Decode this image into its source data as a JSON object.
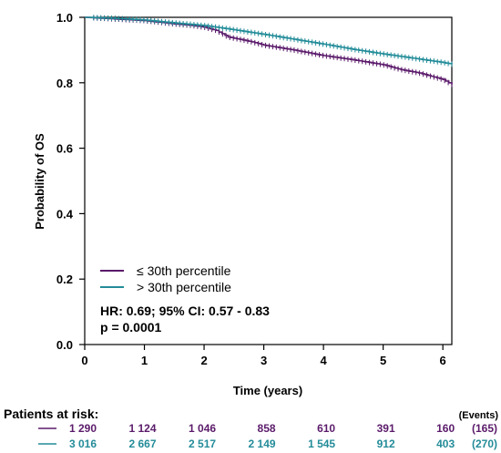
{
  "chart_data": {
    "type": "line",
    "subtype": "kaplan-meier",
    "xlabel": "Time (years)",
    "ylabel": "Probability of OS",
    "xlim": [
      0,
      6.15
    ],
    "ylim": [
      0,
      1.0
    ],
    "x_ticks": [
      "0",
      "1",
      "2",
      "3",
      "4",
      "5",
      "6"
    ],
    "y_ticks": [
      "0.0",
      "0.2",
      "0.4",
      "0.6",
      "0.8",
      "1.0"
    ],
    "grid": false,
    "legend_position": "bottom-left",
    "series": [
      {
        "name": "≤ 30th percentile",
        "color": "#5b1b6b",
        "x": [
          0,
          0.5,
          1.0,
          1.5,
          1.8,
          2.0,
          2.1,
          2.2,
          2.4,
          2.8,
          3.0,
          3.5,
          4.0,
          4.5,
          5.0,
          5.3,
          5.6,
          6.0,
          6.15
        ],
        "y": [
          1.0,
          0.995,
          0.99,
          0.98,
          0.975,
          0.97,
          0.965,
          0.96,
          0.94,
          0.925,
          0.915,
          0.9,
          0.883,
          0.87,
          0.855,
          0.84,
          0.83,
          0.81,
          0.795
        ]
      },
      {
        "name": "> 30th percentile",
        "color": "#238c99",
        "x": [
          0,
          0.5,
          1.0,
          1.5,
          2.0,
          2.5,
          3.0,
          3.5,
          4.0,
          4.5,
          5.0,
          5.5,
          6.0,
          6.15
        ],
        "y": [
          1.0,
          0.997,
          0.992,
          0.983,
          0.975,
          0.962,
          0.948,
          0.933,
          0.918,
          0.902,
          0.888,
          0.875,
          0.862,
          0.857
        ]
      }
    ],
    "annotations": [
      "HR: 0.69; 95% CI: 0.57 - 0.83",
      "p = 0.0001"
    ],
    "risk_table": {
      "title": "Patients at risk:",
      "events_header": "(Events)",
      "rows": [
        {
          "values": [
            "1 290",
            "1 124",
            "1 046",
            "858",
            "610",
            "391",
            "160"
          ],
          "events": "(165)",
          "color": "#5b1b6b"
        },
        {
          "values": [
            "3 016",
            "2 667",
            "2 517",
            "2 149",
            "1 545",
            "912",
            "403"
          ],
          "events": "(270)",
          "color": "#238c99"
        }
      ]
    }
  }
}
